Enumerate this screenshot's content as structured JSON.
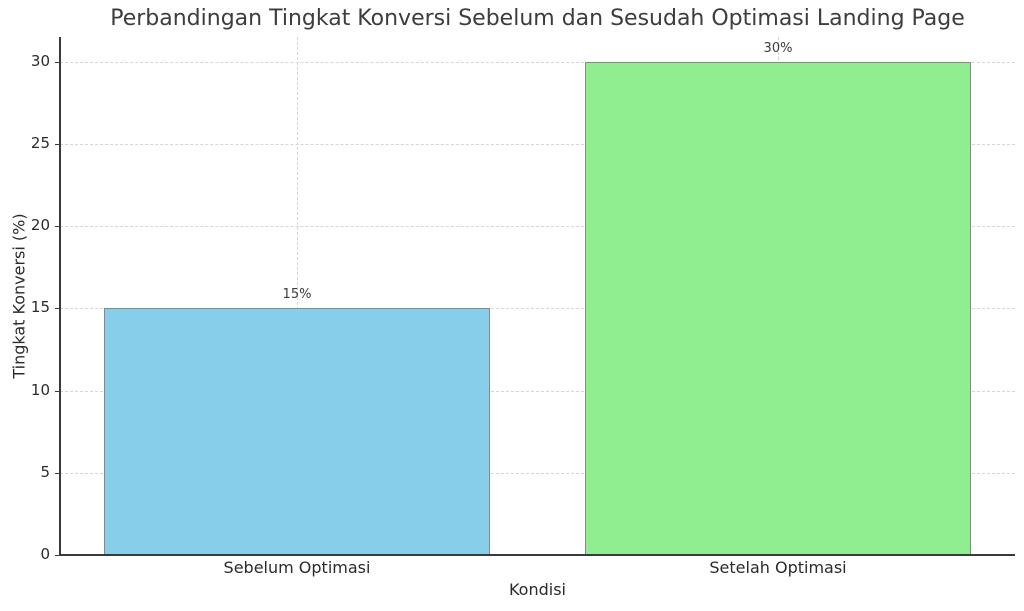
{
  "chart_data": {
    "type": "bar",
    "title": "Perbandingan Tingkat Konversi Sebelum dan Sesudah Optimasi Landing Page",
    "xlabel": "Kondisi",
    "ylabel": "Tingkat Konversi (%)",
    "categories": [
      "Sebelum Optimasi",
      "Setelah Optimasi"
    ],
    "values": [
      15,
      30
    ],
    "data_labels": [
      "15%",
      "30%"
    ],
    "colors": [
      "#87ceeb",
      "#90ee90"
    ],
    "edge_color": "#888888",
    "ylim": [
      0,
      31.5
    ],
    "yticks": [
      0,
      5,
      10,
      15,
      20,
      25,
      30
    ],
    "grid": true,
    "grid_style": "dashed",
    "legend": null
  },
  "yticks_labels": [
    "0",
    "5",
    "10",
    "15",
    "20",
    "25",
    "30"
  ]
}
